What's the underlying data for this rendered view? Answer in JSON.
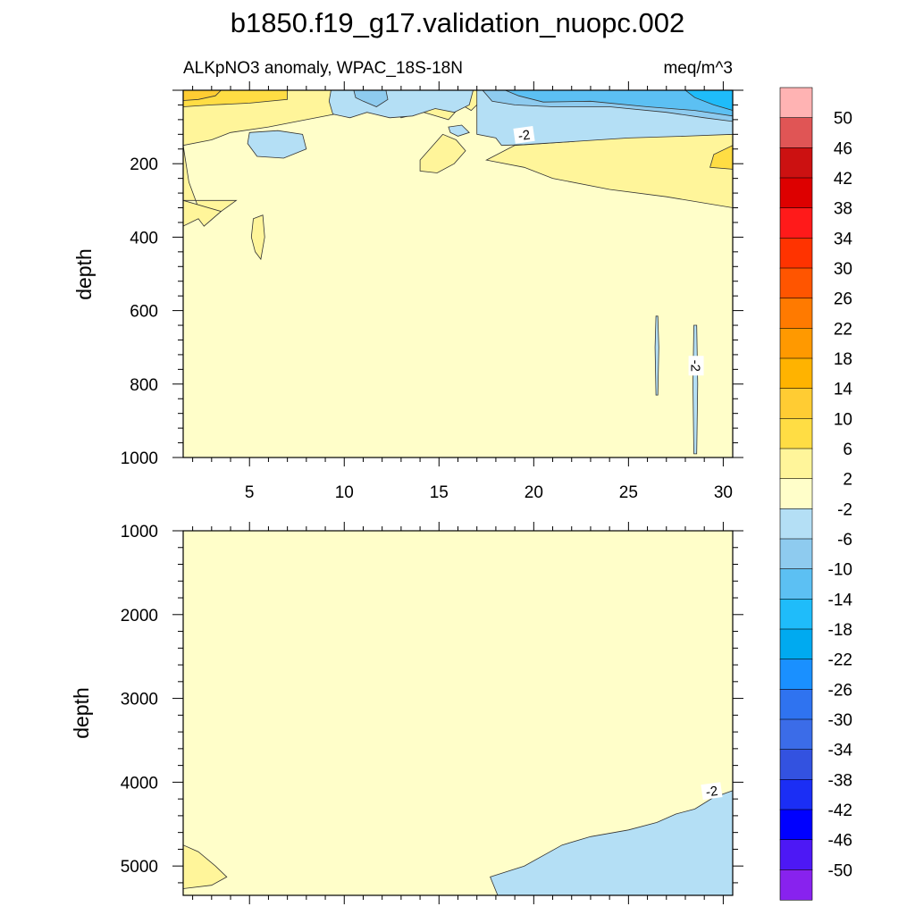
{
  "chart_data": {
    "type": "heatmap",
    "title": "b1850.f19_g17.validation_nuopc.002",
    "left_string": "ALKpNO3 anomaly, WPAC_18S-18N",
    "right_string": "meq/m^3",
    "panels": [
      {
        "name": "upper",
        "ylabel": "depth",
        "xlim": [
          1.5,
          30.5
        ],
        "ylim": [
          1000,
          0
        ],
        "xticks": [
          5,
          10,
          15,
          20,
          25,
          30
        ],
        "yticks": [
          200,
          400,
          600,
          800,
          1000
        ],
        "contour_labels": [
          {
            "text": "-2",
            "x": 19.5,
            "depth": 125
          },
          {
            "text": "-2",
            "x": 28.5,
            "depth": 750
          }
        ],
        "regions": [
          {
            "level": "2..6",
            "polygon": [
              [
                1.5,
                0
              ],
              [
                10,
                0
              ],
              [
                10,
                60
              ],
              [
                8,
                80
              ],
              [
                6,
                100
              ],
              [
                4,
                115
              ],
              [
                3,
                135
              ],
              [
                1.5,
                150
              ]
            ]
          },
          {
            "level": "6..10",
            "polygon": [
              [
                1.5,
                0
              ],
              [
                7,
                0
              ],
              [
                7,
                25
              ],
              [
                5,
                35
              ],
              [
                3,
                40
              ],
              [
                1.5,
                45
              ]
            ]
          },
          {
            "level": "10..14",
            "polygon": [
              [
                1.5,
                0
              ],
              [
                3.5,
                0
              ],
              [
                3.2,
                15
              ],
              [
                2.3,
                25
              ],
              [
                1.5,
                28
              ]
            ]
          },
          {
            "level": "2..6",
            "polygon": [
              [
                1.5,
                150
              ],
              [
                1.8,
                250
              ],
              [
                2.3,
                320
              ],
              [
                2.6,
                370
              ],
              [
                3.5,
                330
              ],
              [
                4.3,
                300
              ],
              [
                1.5,
                300
              ]
            ]
          },
          {
            "level": "2..6",
            "polygon": [
              [
                1.5,
                300
              ],
              [
                3.5,
                330
              ],
              [
                2.6,
                370
              ],
              [
                2.3,
                350
              ],
              [
                1.5,
                370
              ]
            ]
          },
          {
            "level": "2..6",
            "polygon": [
              [
                5.2,
                350
              ],
              [
                5.7,
                340
              ],
              [
                5.8,
                400
              ],
              [
                5.6,
                460
              ],
              [
                5.3,
                440
              ],
              [
                5.1,
                400
              ]
            ]
          },
          {
            "level": "-6..-2",
            "polygon": [
              [
                5.0,
                115
              ],
              [
                6.5,
                110
              ],
              [
                7.8,
                120
              ],
              [
                8.0,
                160
              ],
              [
                6.8,
                185
              ],
              [
                5.4,
                180
              ],
              [
                4.9,
                145
              ]
            ]
          },
          {
            "level": "2..6",
            "polygon": [
              [
                12.2,
                0
              ],
              [
                17.5,
                0
              ],
              [
                17.0,
                40
              ],
              [
                16.7,
                55
              ],
              [
                16.2,
                40
              ],
              [
                15.5,
                80
              ],
              [
                14.2,
                60
              ],
              [
                13.0,
                75
              ],
              [
                12.2,
                40
              ]
            ]
          },
          {
            "level": "-6..-2",
            "polygon": [
              [
                9.3,
                0
              ],
              [
                16.8,
                0
              ],
              [
                16.6,
                40
              ],
              [
                15.8,
                60
              ],
              [
                14.8,
                50
              ],
              [
                13.6,
                70
              ],
              [
                12.4,
                75
              ],
              [
                11.2,
                60
              ],
              [
                10.3,
                75
              ],
              [
                9.4,
                65
              ],
              [
                9.2,
                30
              ]
            ]
          },
          {
            "level": "-10..-6",
            "polygon": [
              [
                10.5,
                0
              ],
              [
                12.2,
                0
              ],
              [
                12.3,
                25
              ],
              [
                11.7,
                45
              ],
              [
                11.0,
                30
              ],
              [
                10.6,
                20
              ]
            ]
          },
          {
            "level": "-6..-2",
            "polygon": [
              [
                15.5,
                100
              ],
              [
                16.2,
                95
              ],
              [
                16.6,
                115
              ],
              [
                16.0,
                125
              ],
              [
                15.6,
                115
              ]
            ]
          },
          {
            "level": "2..6",
            "polygon": [
              [
                14.0,
                190
              ],
              [
                15.2,
                120
              ],
              [
                15.9,
                135
              ],
              [
                16.4,
                165
              ],
              [
                15.8,
                200
              ],
              [
                14.9,
                225
              ],
              [
                14.0,
                220
              ]
            ]
          },
          {
            "level": "2..6",
            "polygon": [
              [
                17.5,
                190
              ],
              [
                19,
                150
              ],
              [
                22,
                140
              ],
              [
                25,
                125
              ],
              [
                28,
                120
              ],
              [
                30.5,
                120
              ],
              [
                30.5,
                320
              ],
              [
                27,
                290
              ],
              [
                24,
                270
              ],
              [
                21,
                240
              ],
              [
                19.5,
                210
              ]
            ]
          },
          {
            "level": "6..10",
            "polygon": [
              [
                30.5,
                150
              ],
              [
                29.5,
                175
              ],
              [
                29.3,
                210
              ],
              [
                30.5,
                215
              ]
            ]
          },
          {
            "level": "-6..-2",
            "polygon": [
              [
                17.0,
                0
              ],
              [
                30.5,
                0
              ],
              [
                30.5,
                120
              ],
              [
                28,
                125
              ],
              [
                25,
                130
              ],
              [
                22,
                140
              ],
              [
                19.5,
                148
              ],
              [
                18.3,
                150
              ],
              [
                18,
                130
              ],
              [
                17.0,
                120
              ]
            ]
          },
          {
            "level": "-10..-6",
            "polygon": [
              [
                17.3,
                0
              ],
              [
                30.5,
                0
              ],
              [
                30.5,
                85
              ],
              [
                29,
                75
              ],
              [
                27,
                60
              ],
              [
                24,
                45
              ],
              [
                21,
                45
              ],
              [
                19,
                40
              ],
              [
                17.8,
                30
              ]
            ]
          },
          {
            "level": "-14..-10",
            "polygon": [
              [
                18.5,
                0
              ],
              [
                30.5,
                0
              ],
              [
                30.5,
                70
              ],
              [
                28.5,
                55
              ],
              [
                26,
                45
              ],
              [
                23,
                30
              ],
              [
                20.5,
                32
              ],
              [
                19.2,
                15
              ]
            ]
          },
          {
            "level": "-18..-14",
            "polygon": [
              [
                28,
                0
              ],
              [
                30.5,
                0
              ],
              [
                30.5,
                55
              ],
              [
                29.5,
                40
              ],
              [
                28.5,
                20
              ]
            ]
          },
          {
            "level": "-6..-2",
            "polygon": [
              [
                26.45,
                615
              ],
              [
                26.55,
                615
              ],
              [
                26.6,
                700
              ],
              [
                26.55,
                830
              ],
              [
                26.45,
                830
              ],
              [
                26.4,
                700
              ]
            ]
          },
          {
            "level": "-6..-2",
            "polygon": [
              [
                28.45,
                640
              ],
              [
                28.6,
                640
              ],
              [
                28.65,
                800
              ],
              [
                28.6,
                990
              ],
              [
                28.45,
                990
              ],
              [
                28.4,
                800
              ]
            ]
          }
        ]
      },
      {
        "name": "lower",
        "ylabel": "depth",
        "xlim": [
          1.5,
          30.5
        ],
        "ylim": [
          5350,
          1000
        ],
        "xticks": [
          5,
          10,
          15,
          20,
          25,
          30
        ],
        "yticks": [
          1000,
          2000,
          3000,
          4000,
          5000
        ],
        "contour_labels": [
          {
            "text": "-2",
            "x": 29.4,
            "depth": 4120
          }
        ],
        "regions": [
          {
            "level": "-6..-2",
            "polygon": [
              [
                18.1,
                5350
              ],
              [
                17.7,
                5130
              ],
              [
                19.5,
                5000
              ],
              [
                21.5,
                4750
              ],
              [
                23,
                4650
              ],
              [
                25,
                4570
              ],
              [
                26.5,
                4480
              ],
              [
                27.5,
                4380
              ],
              [
                28.5,
                4320
              ],
              [
                29.5,
                4180
              ],
              [
                30.5,
                4100
              ],
              [
                30.5,
                5350
              ]
            ]
          },
          {
            "level": "2..6",
            "polygon": [
              [
                1.5,
                4750
              ],
              [
                2.3,
                4830
              ],
              [
                3.2,
                5000
              ],
              [
                3.8,
                5130
              ],
              [
                3.0,
                5230
              ],
              [
                1.5,
                5270
              ]
            ]
          }
        ]
      }
    ],
    "colorbar": {
      "labels": [
        "50",
        "46",
        "42",
        "38",
        "34",
        "30",
        "26",
        "22",
        "18",
        "14",
        "10",
        "6",
        "2",
        "-2",
        "-6",
        "-10",
        "-14",
        "-18",
        "-22",
        "-26",
        "-30",
        "-34",
        "-38",
        "-42",
        "-46",
        "-50"
      ],
      "colors": [
        "#ffb3b3",
        "#e05555",
        "#cc1111",
        "#dd0000",
        "#ff1a1a",
        "#ff3300",
        "#ff5500",
        "#ff7a00",
        "#ff9900",
        "#ffb300",
        "#ffcc33",
        "#ffdd44",
        "#fff59a",
        "#fffec9",
        "#b4dff5",
        "#8ecbef",
        "#5cc0f3",
        "#1fbcfa",
        "#00aaf0",
        "#1a90ff",
        "#2f73f0",
        "#3b6ce8",
        "#3352e0",
        "#1b2ef5",
        "#0000ff",
        "#4d18f5",
        "#8822ee"
      ],
      "level_colors": {
        "2..6": "#fff59a",
        "6..10": "#ffdd44",
        "10..14": "#ffcc33",
        "-2..2": "#fffec9",
        "-6..-2": "#b4dff5",
        "-10..-6": "#8ecbef",
        "-14..-10": "#5cc0f3",
        "-18..-14": "#1fbcfa"
      }
    },
    "background_level": "-2..2"
  }
}
